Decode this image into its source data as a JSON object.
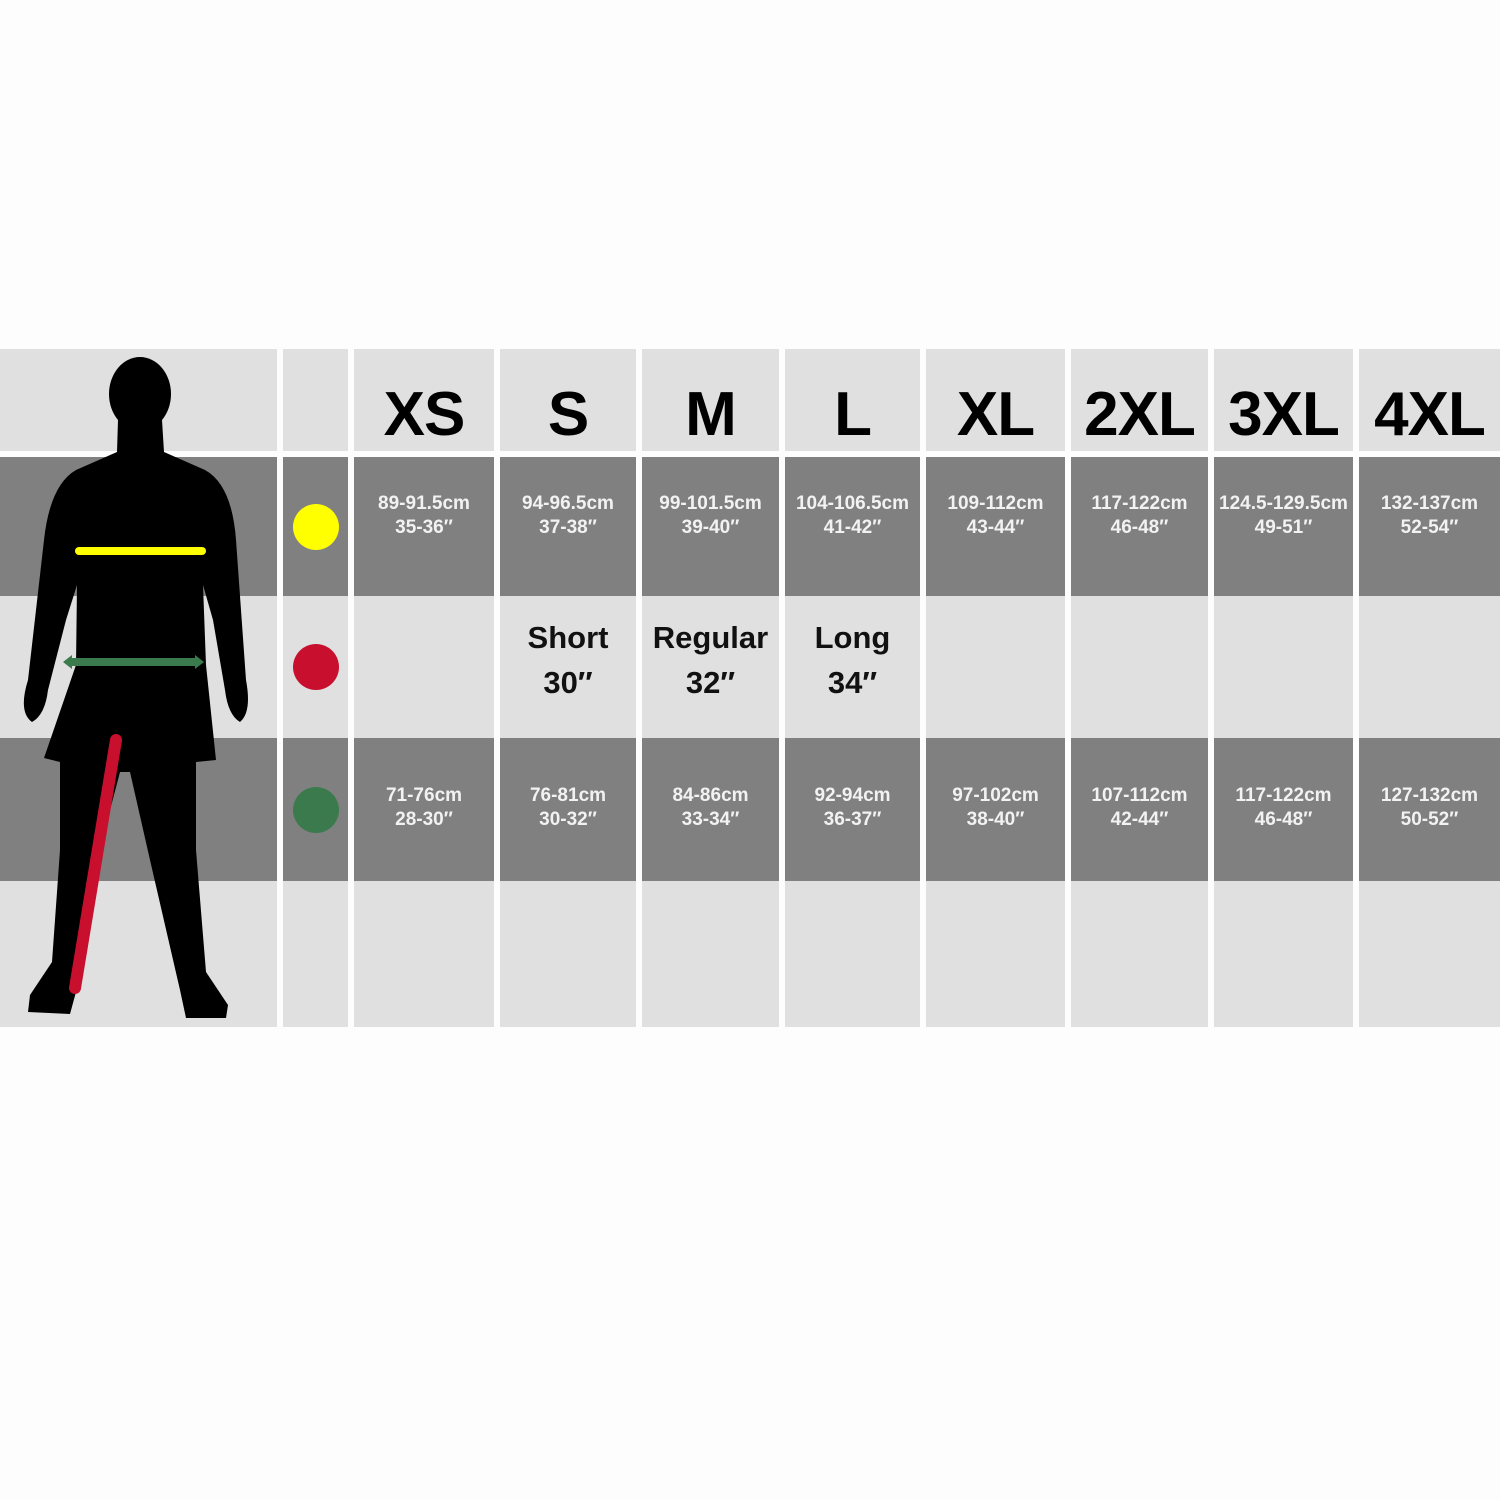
{
  "sizes": [
    "XS",
    "S",
    "M",
    "L",
    "XL",
    "2XL",
    "3XL",
    "4XL"
  ],
  "rows": [
    {
      "marker_color": "#ffff00",
      "marker_icon": "chest-marker",
      "values": [
        [
          "89-91.5cm",
          "35-36″"
        ],
        [
          "94-96.5cm",
          "37-38″"
        ],
        [
          "99-101.5cm",
          "39-40″"
        ],
        [
          "104-106.5cm",
          "41-42″"
        ],
        [
          "109-112cm",
          "43-44″"
        ],
        [
          "117-122cm",
          "46-48″"
        ],
        [
          "124.5-129.5cm",
          "49-51″"
        ],
        [
          "132-137cm",
          "52-54″"
        ]
      ]
    },
    {
      "marker_color": "#c8102e",
      "marker_icon": "inside-leg-marker",
      "values": [
        [
          "",
          ""
        ],
        [
          "Short",
          "30″"
        ],
        [
          "Regular",
          "32″"
        ],
        [
          "Long",
          "34″"
        ],
        [
          "",
          ""
        ],
        [
          "",
          ""
        ],
        [
          "",
          ""
        ],
        [
          "",
          ""
        ]
      ]
    },
    {
      "marker_color": "#3b7a4c",
      "marker_icon": "waist-marker",
      "values": [
        [
          "71-76cm",
          "28-30″"
        ],
        [
          "76-81cm",
          "30-32″"
        ],
        [
          "84-86cm",
          "33-34″"
        ],
        [
          "92-94cm",
          "36-37″"
        ],
        [
          "97-102cm",
          "38-40″"
        ],
        [
          "107-112cm",
          "42-44″"
        ],
        [
          "117-122cm",
          "46-48″"
        ],
        [
          "127-132cm",
          "50-52″"
        ]
      ]
    }
  ],
  "colors": {
    "dark_band": "#808080",
    "light_band": "#e0e0e0",
    "chest": "#ffff00",
    "inside_leg": "#c8102e",
    "waist": "#3b7a4c"
  }
}
